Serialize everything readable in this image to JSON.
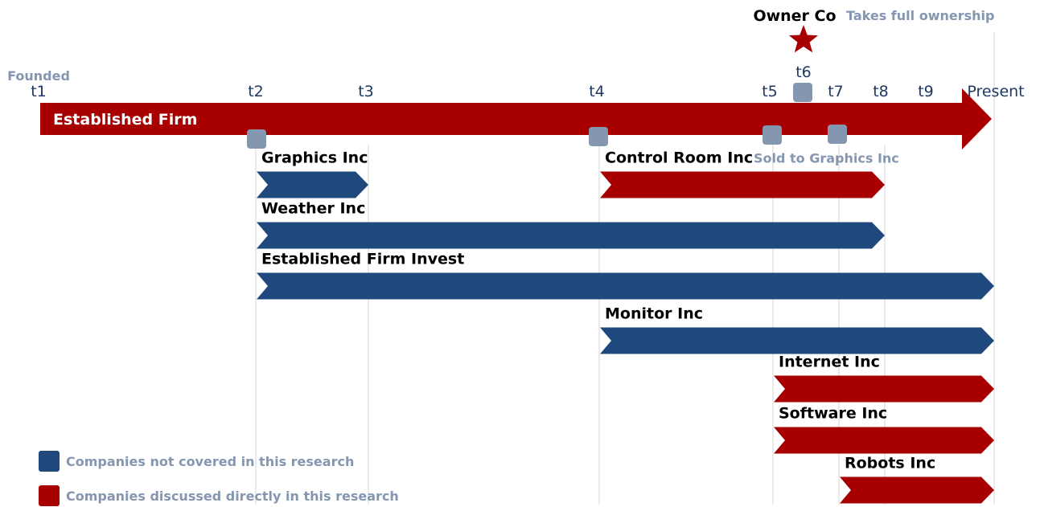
{
  "colors": {
    "red": "#a80000",
    "blue": "#1f497d",
    "marker": "#8496b0",
    "tick_text": "#1f3864",
    "gray_text": "#8496b0",
    "black_text": "#000000",
    "white_text": "#ffffff",
    "guide": "#d6d6d6"
  },
  "main_bar": {
    "label": "Established Firm",
    "color": "red"
  },
  "top_note": {
    "owner": "Owner Co",
    "note": "Takes full ownership",
    "icon": "star-icon"
  },
  "ticks": [
    {
      "id": "t1",
      "label": "t1",
      "sublabel": "Founded"
    },
    {
      "id": "t2",
      "label": "t2"
    },
    {
      "id": "t3",
      "label": "t3"
    },
    {
      "id": "t4",
      "label": "t4"
    },
    {
      "id": "t5",
      "label": "t5"
    },
    {
      "id": "t6",
      "label": "t6"
    },
    {
      "id": "t7",
      "label": "t7"
    },
    {
      "id": "t8",
      "label": "t8"
    },
    {
      "id": "t9",
      "label": "t9"
    },
    {
      "id": "present",
      "label": "Present"
    }
  ],
  "event_markers": [
    "t2",
    "t4",
    "t5",
    "t6",
    "t7"
  ],
  "companies": [
    {
      "name": "Graphics Inc",
      "color": "blue",
      "start": "t2",
      "end": "t3"
    },
    {
      "name": "Control Room Inc",
      "color": "red",
      "start": "t4",
      "end": "t8",
      "note": "Sold to Graphics Inc"
    },
    {
      "name": "Weather Inc",
      "color": "blue",
      "start": "t2",
      "end": "t8"
    },
    {
      "name": "Established Firm Invest",
      "color": "blue",
      "start": "t2",
      "end": "present"
    },
    {
      "name": "Monitor Inc",
      "color": "blue",
      "start": "t4",
      "end": "present"
    },
    {
      "name": "Internet Inc",
      "color": "red",
      "start": "t5",
      "end": "present"
    },
    {
      "name": "Software Inc",
      "color": "red",
      "start": "t5",
      "end": "present"
    },
    {
      "name": "Robots Inc",
      "color": "red",
      "start": "t7",
      "end": "present"
    }
  ],
  "legend": [
    {
      "color": "blue",
      "label": "Companies not covered in this research"
    },
    {
      "color": "red",
      "label": "Companies discussed directly in this research"
    }
  ]
}
